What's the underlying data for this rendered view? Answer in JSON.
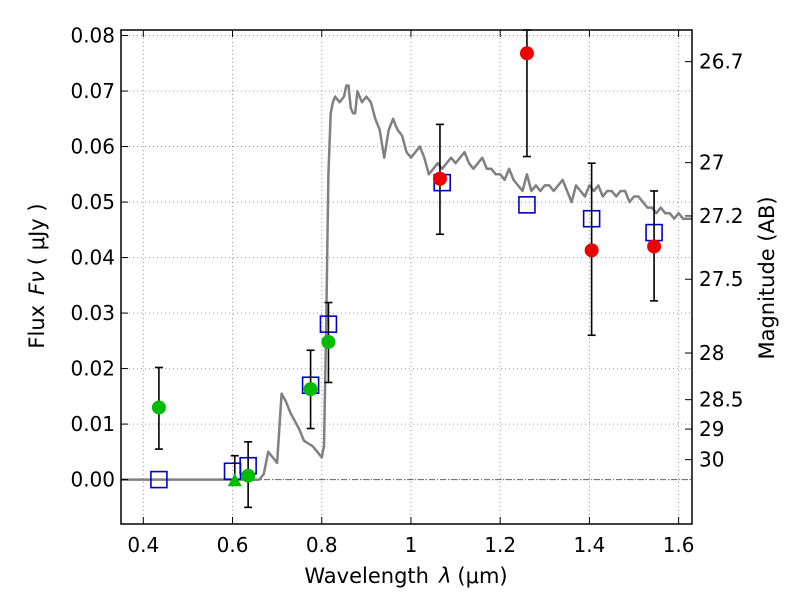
{
  "chart_data": {
    "type": "scatter",
    "xlabel": "Wavelength",
    "xlabel_symbol": "λ",
    "xlabel_unit": "(μm)",
    "ylabel": "Flux",
    "ylabel_symbol": "Fν",
    "ylabel_unit": "( μJy )",
    "ylabel_right": "Magnitude (AB)",
    "xlim": [
      0.35,
      1.63
    ],
    "ylim": [
      -0.008,
      0.081
    ],
    "grid": true,
    "xticks": [
      0.4,
      0.6,
      0.8,
      1.0,
      1.2,
      1.4,
      1.6
    ],
    "xtick_labels": [
      "0.4",
      "0.6",
      "0.8",
      "1",
      "1.2",
      "1.4",
      "1.6"
    ],
    "yticks": [
      0.0,
      0.01,
      0.02,
      0.03,
      0.04,
      0.05,
      0.06,
      0.07,
      0.08
    ],
    "ytick_labels": [
      "0.00",
      "0.01",
      "0.02",
      "0.03",
      "0.04",
      "0.05",
      "0.06",
      "0.07",
      "0.08"
    ],
    "right_ticks": [
      {
        "label": "26.7",
        "flux": 0.0753
      },
      {
        "label": "27",
        "flux": 0.0571
      },
      {
        "label": "27.2",
        "flux": 0.0475
      },
      {
        "label": "27.5",
        "flux": 0.0361
      },
      {
        "label": "28",
        "flux": 0.0228
      },
      {
        "label": "28.5",
        "flux": 0.0144
      },
      {
        "label": "29",
        "flux": 0.0091
      },
      {
        "label": "30",
        "flux": 0.0036
      }
    ],
    "zero_line": 0.0,
    "colors": {
      "model": "#808080",
      "model_photometry": "#0000cc",
      "green_points": "#00bb00",
      "red_points": "#ee0000",
      "errorbars": "#000000",
      "grid": "#999999"
    },
    "series": [
      {
        "style": "line",
        "color": "#808080",
        "x": [
          0.35,
          0.66,
          0.67,
          0.68,
          0.69,
          0.7,
          0.71,
          0.72,
          0.73,
          0.74,
          0.75,
          0.76,
          0.77,
          0.78,
          0.79,
          0.8,
          0.805,
          0.81,
          0.815,
          0.82,
          0.825,
          0.83,
          0.84,
          0.85,
          0.855,
          0.86,
          0.865,
          0.87,
          0.875,
          0.88,
          0.89,
          0.9,
          0.91,
          0.92,
          0.93,
          0.94,
          0.95,
          0.955,
          0.96,
          0.965,
          0.97,
          0.98,
          0.99,
          1.0,
          1.01,
          1.02,
          1.03,
          1.04,
          1.05,
          1.06,
          1.07,
          1.08,
          1.09,
          1.1,
          1.11,
          1.12,
          1.13,
          1.14,
          1.15,
          1.16,
          1.17,
          1.18,
          1.19,
          1.2,
          1.21,
          1.22,
          1.23,
          1.24,
          1.25,
          1.26,
          1.27,
          1.28,
          1.29,
          1.3,
          1.31,
          1.32,
          1.33,
          1.34,
          1.35,
          1.36,
          1.37,
          1.38,
          1.39,
          1.4,
          1.41,
          1.42,
          1.43,
          1.44,
          1.45,
          1.46,
          1.47,
          1.48,
          1.49,
          1.5,
          1.51,
          1.52,
          1.53,
          1.54,
          1.55,
          1.56,
          1.57,
          1.58,
          1.59,
          1.6,
          1.61,
          1.62,
          1.63
        ],
        "y": [
          0.0,
          0.0,
          0.001,
          0.005,
          0.004,
          0.003,
          0.0155,
          0.014,
          0.012,
          0.0105,
          0.009,
          0.007,
          0.0065,
          0.006,
          0.005,
          0.004,
          0.006,
          0.028,
          0.055,
          0.066,
          0.068,
          0.069,
          0.068,
          0.069,
          0.071,
          0.071,
          0.067,
          0.066,
          0.066,
          0.07,
          0.068,
          0.069,
          0.068,
          0.065,
          0.063,
          0.058,
          0.063,
          0.064,
          0.065,
          0.064,
          0.063,
          0.062,
          0.059,
          0.058,
          0.059,
          0.06,
          0.058,
          0.055,
          0.056,
          0.057,
          0.056,
          0.057,
          0.058,
          0.057,
          0.058,
          0.059,
          0.057,
          0.056,
          0.057,
          0.058,
          0.056,
          0.056,
          0.055,
          0.055,
          0.054,
          0.056,
          0.054,
          0.053,
          0.052,
          0.055,
          0.052,
          0.053,
          0.052,
          0.053,
          0.053,
          0.052,
          0.053,
          0.054,
          0.052,
          0.05,
          0.053,
          0.052,
          0.051,
          0.053,
          0.052,
          0.053,
          0.051,
          0.052,
          0.052,
          0.051,
          0.052,
          0.052,
          0.05,
          0.051,
          0.051,
          0.05,
          0.049,
          0.049,
          0.048,
          0.049,
          0.048,
          0.048,
          0.047,
          0.048,
          0.047,
          0.047,
          0.047
        ]
      },
      {
        "style": "open-square",
        "color": "#0000cc",
        "points": [
          {
            "x": 0.435,
            "y": 0.0
          },
          {
            "x": 0.6,
            "y": 0.0015
          },
          {
            "x": 0.635,
            "y": 0.0025
          },
          {
            "x": 0.775,
            "y": 0.017
          },
          {
            "x": 0.815,
            "y": 0.028
          },
          {
            "x": 1.07,
            "y": 0.0535
          },
          {
            "x": 1.26,
            "y": 0.0495
          },
          {
            "x": 1.405,
            "y": 0.047
          },
          {
            "x": 1.545,
            "y": 0.0445
          }
        ]
      },
      {
        "style": "filled-circle",
        "color": "#00bb00",
        "points": [
          {
            "x": 0.435,
            "y": 0.013,
            "ylow": 0.0055,
            "yhigh": 0.0202
          },
          {
            "x": 0.635,
            "y": 0.0007,
            "ylow": -0.005,
            "yhigh": 0.0068
          },
          {
            "x": 0.775,
            "y": 0.0163,
            "ylow": 0.0092,
            "yhigh": 0.0233
          },
          {
            "x": 0.815,
            "y": 0.0248,
            "ylow": 0.0175,
            "yhigh": 0.0319
          }
        ]
      },
      {
        "style": "filled-triangle",
        "color": "#00bb00",
        "points": [
          {
            "x": 0.605,
            "y": -0.0003,
            "ylow": -0.0005,
            "yhigh": 0.0043
          }
        ]
      },
      {
        "style": "filled-circle",
        "color": "#ee0000",
        "points": [
          {
            "x": 1.065,
            "y": 0.0542,
            "ylow": 0.0442,
            "yhigh": 0.064
          },
          {
            "x": 1.26,
            "y": 0.0768,
            "ylow": 0.0582,
            "yhigh": 0.081
          },
          {
            "x": 1.405,
            "y": 0.0413,
            "ylow": 0.026,
            "yhigh": 0.057
          },
          {
            "x": 1.545,
            "y": 0.042,
            "ylow": 0.0322,
            "yhigh": 0.052
          }
        ]
      }
    ]
  }
}
